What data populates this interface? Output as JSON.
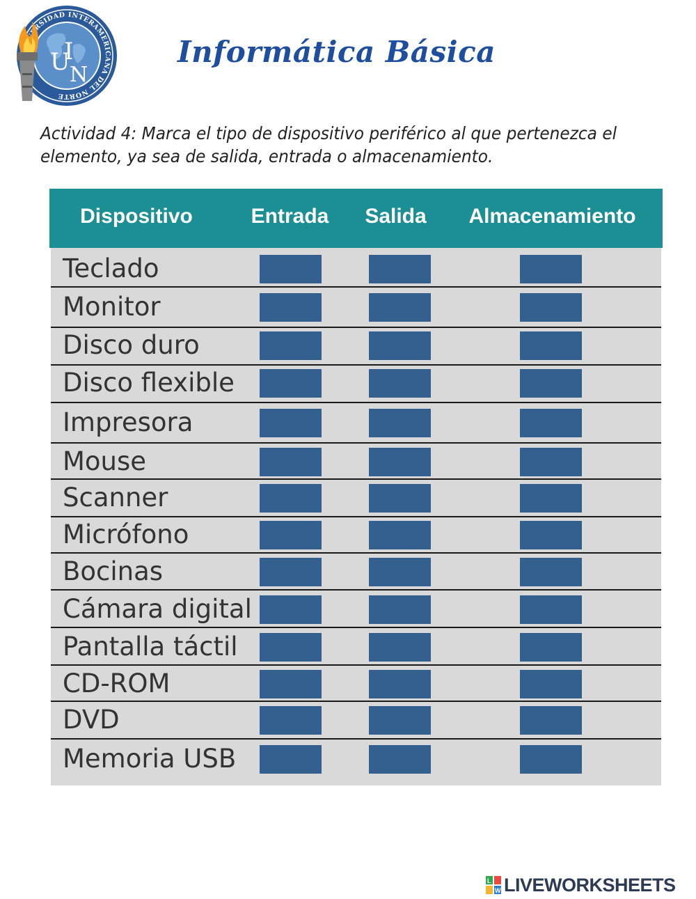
{
  "logo": {
    "ring_text": "UNIVERSIDAD INTERAMERICANA DEL NORTE",
    "letters": [
      "U",
      "I",
      "N"
    ]
  },
  "title": "Informática Básica",
  "instructions": "Actividad 4: Marca el tipo de dispositivo periférico al que pertenezca el elemento, ya sea de salida, entrada o almacenamiento.",
  "table": {
    "headers": [
      "Dispositivo",
      "Entrada",
      "Salida",
      "Almacenamiento"
    ],
    "rows": [
      {
        "label": "Teclado"
      },
      {
        "label": "Monitor"
      },
      {
        "label": "Disco duro"
      },
      {
        "label": "Disco flexible"
      },
      {
        "label": "Impresora"
      },
      {
        "label": "Mouse"
      },
      {
        "label": "Scanner"
      },
      {
        "label": "Micrófono"
      },
      {
        "label": "Bocinas"
      },
      {
        "label": "Cámara digital"
      },
      {
        "label": "Pantalla táctil"
      },
      {
        "label": "CD-ROM"
      },
      {
        "label": "DVD"
      },
      {
        "label": "Memoria USB"
      }
    ]
  },
  "brand": {
    "name": "LIVEWORKSHEETS",
    "mark_letters": [
      "L",
      "W"
    ]
  },
  "colors": {
    "title": "#1f4e9e",
    "header_bg": "#1b8f94",
    "body_bg": "#d9d9d9",
    "answer_box": "#33608f"
  }
}
